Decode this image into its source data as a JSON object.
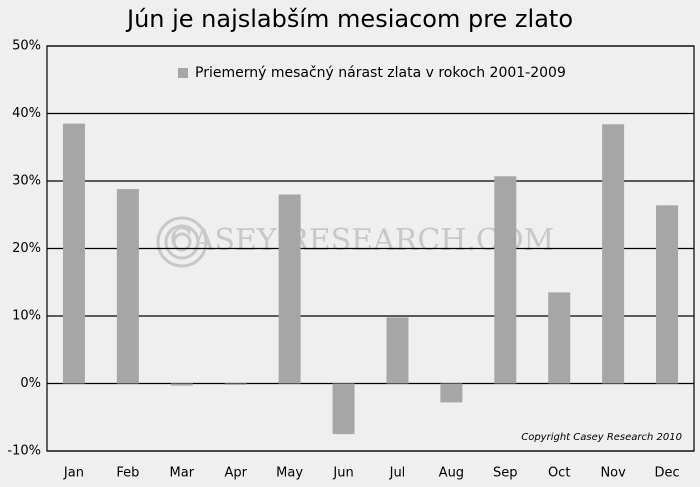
{
  "chart_data": {
    "type": "bar",
    "title": "Jún je najslabším mesiacom pre zlato",
    "legend_label": "Priemerný mesačný nárast zlata v rokoch 2001-2009",
    "copyright": "Copyright Casey Research 2010",
    "watermark": "CASEY RESEARCH.COM",
    "categories": [
      "Jan",
      "Feb",
      "Mar",
      "Apr",
      "May",
      "Jun",
      "Jul",
      "Aug",
      "Sep",
      "Oct",
      "Nov",
      "Dec"
    ],
    "values": [
      38.5,
      28.8,
      -0.3,
      -0.2,
      28,
      -7.5,
      9.8,
      -2.8,
      30.7,
      13.5,
      38.4,
      26.4
    ],
    "color": "#a6a6a6",
    "ylim": [
      -10,
      50
    ],
    "yticks": [
      {
        "value": -10,
        "label": "-10%"
      },
      {
        "value": 0,
        "label": "0%"
      },
      {
        "value": 10,
        "label": "10%"
      },
      {
        "value": 20,
        "label": "20%"
      },
      {
        "value": 30,
        "label": "30%"
      },
      {
        "value": 40,
        "label": "40%"
      },
      {
        "value": 50,
        "label": "50%"
      }
    ],
    "grid": true
  }
}
